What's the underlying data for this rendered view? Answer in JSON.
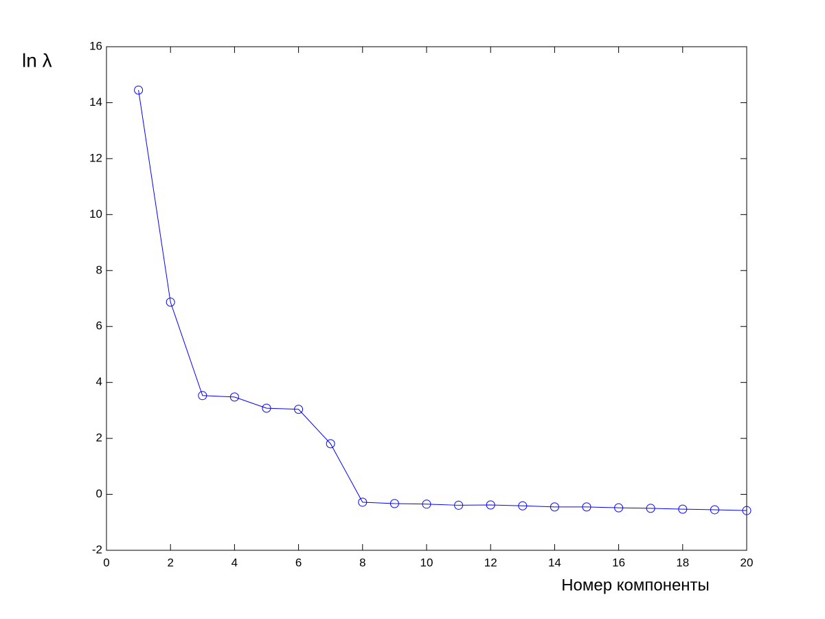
{
  "chart_data": {
    "type": "line",
    "ylabel": "ln λ",
    "xlabel": "Номер компоненты",
    "x": [
      1,
      2,
      3,
      4,
      5,
      6,
      7,
      8,
      9,
      10,
      11,
      12,
      13,
      14,
      15,
      16,
      17,
      18,
      19,
      20
    ],
    "series": [
      {
        "color": "#0000ff",
        "marker": "circle",
        "values": [
          14.45,
          6.87,
          3.53,
          3.48,
          3.08,
          3.04,
          1.81,
          -0.28,
          -0.33,
          -0.35,
          -0.39,
          -0.38,
          -0.41,
          -0.45,
          -0.45,
          -0.48,
          -0.5,
          -0.53,
          -0.55,
          -0.58
        ]
      }
    ],
    "xlim": [
      0,
      20
    ],
    "xticks": [
      0,
      2,
      4,
      6,
      8,
      10,
      12,
      14,
      16,
      18,
      20
    ],
    "ylim": [
      -2,
      16
    ],
    "yticks": [
      -2,
      0,
      2,
      4,
      6,
      8,
      10,
      12,
      14,
      16
    ],
    "grid": false
  }
}
